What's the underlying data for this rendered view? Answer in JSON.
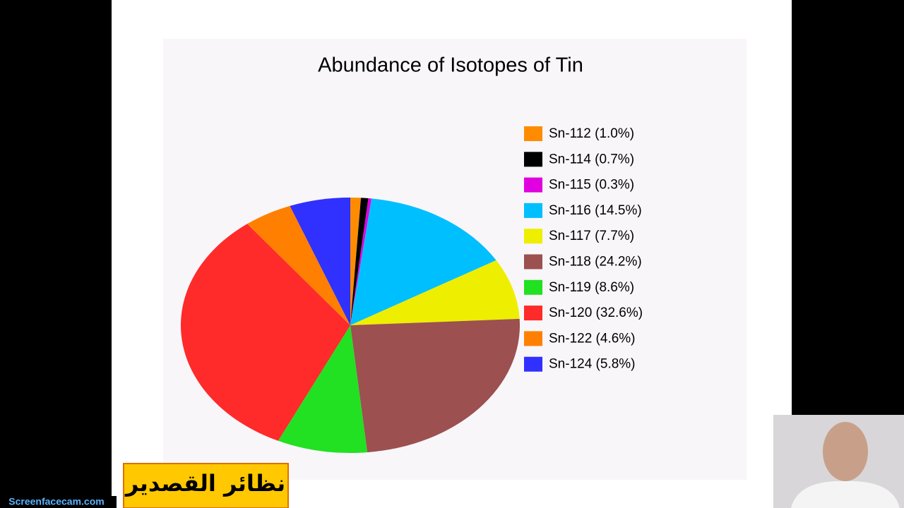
{
  "chart_data": {
    "type": "pie",
    "title": "Abundance of Isotopes of Tin",
    "categories": [
      "Sn-112 (1.0%)",
      "Sn-114 (0.7%)",
      "Sn-115 (0.3%)",
      "Sn-116 (14.5%)",
      "Sn-117 (7.7%)",
      "Sn-118 (24.2%)",
      "Sn-119 (8.6%)",
      "Sn-120 (32.6%)",
      "Sn-122 (4.6%)",
      "Sn-124 (5.8%)"
    ],
    "values": [
      1.0,
      0.7,
      0.3,
      14.5,
      7.7,
      24.2,
      8.6,
      32.6,
      4.6,
      5.8
    ],
    "colors": [
      "#ff8c00",
      "#000000",
      "#e000e0",
      "#00bfff",
      "#eeee00",
      "#9c5050",
      "#22e022",
      "#ff2a2a",
      "#ff8000",
      "#3030ff"
    ]
  },
  "caption": "نظائر القصدير",
  "watermark": "Screenfacecam.com"
}
